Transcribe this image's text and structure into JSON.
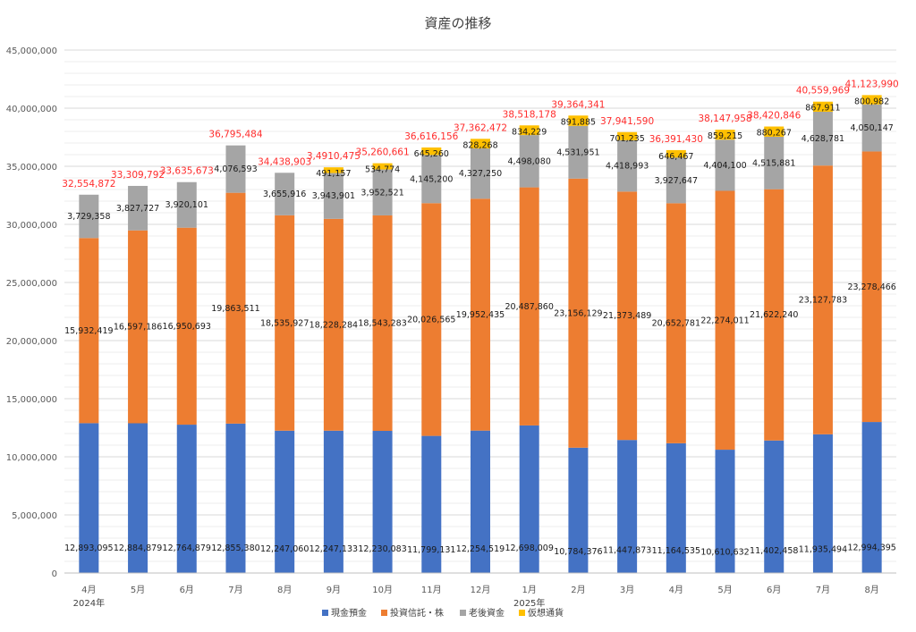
{
  "chart_data": {
    "type": "bar",
    "stacked": true,
    "title": "資産の推移",
    "categories": [
      "4月",
      "5月",
      "6月",
      "7月",
      "8月",
      "9月",
      "10月",
      "11月",
      "12月",
      "1月",
      "2月",
      "3月",
      "4月",
      "5月",
      "6月",
      "7月",
      "8月"
    ],
    "year_labels": [
      {
        "index": 0,
        "label": "2024年"
      },
      {
        "index": 9,
        "label": "2025年"
      }
    ],
    "ylim": [
      0,
      45000000
    ],
    "yticks": [
      "0",
      "5,000,000",
      "10,000,000",
      "15,000,000",
      "20,000,000",
      "25,000,000",
      "30,000,000",
      "35,000,000",
      "40,000,000",
      "45,000,000"
    ],
    "grid": true,
    "legend_position": "bottom",
    "series": [
      {
        "name": "現金預金",
        "color": "#4472c4",
        "values": [
          12893095,
          12884879,
          12764879,
          12855380,
          12247060,
          12247133,
          12230083,
          11799131,
          12254519,
          12698009,
          10784376,
          11447873,
          11164535,
          10610632,
          11402458,
          11935494,
          12994395
        ],
        "labels": [
          "12,893,095",
          "12,884,879",
          "12,764,879",
          "12,855,380",
          "12,247,060",
          "12,247,133",
          "12,230,083",
          "11,799,131",
          "12,254,519",
          "12,698,009",
          "10,784,376",
          "11,447,873",
          "11,164,535",
          "10,610,632",
          "11,402,458",
          "11,935,494",
          "12,994,395"
        ]
      },
      {
        "name": "投資信託・株",
        "color": "#ed7d31",
        "values": [
          15932419,
          16597186,
          16950693,
          19863511,
          18535927,
          18228284,
          18543283,
          20026565,
          19952435,
          20487860,
          23156129,
          21373489,
          20652781,
          22274011,
          21622240,
          23127783,
          23278466
        ],
        "labels": [
          "15,932,419",
          "16,597,186",
          "16,950,693",
          "19,863,511",
          "18,535,927",
          "18,228,284",
          "18,543,283",
          "20,026,565",
          "19,952,435",
          "20,487,860",
          "23,156,129",
          "21,373,489",
          "20,652,781",
          "22,274,011",
          "21,622,240",
          "23,127,783",
          "23,278,466"
        ]
      },
      {
        "name": "老後資金",
        "color": "#a5a5a5",
        "values": [
          3729358,
          3827727,
          3920101,
          4076593,
          3655916,
          3943901,
          3952521,
          4145200,
          4327250,
          4498080,
          4531951,
          4418993,
          3927647,
          4404100,
          4515881,
          4628781,
          4050147
        ],
        "labels": [
          "3,729,358",
          "3,827,727",
          "3,920,101",
          "4,076,593",
          "3,655,916",
          "3,943,901",
          "3,952,521",
          "4,145,200",
          "4,327,250",
          "4,498,080",
          "4,531,951",
          "4,418,993",
          "3,927,647",
          "4,404,100",
          "4,515,881",
          "4,628,781",
          "4,050,147"
        ]
      },
      {
        "name": "仮想通貨",
        "color": "#ffc000",
        "values": [
          0,
          0,
          0,
          0,
          0,
          491157,
          534774,
          645260,
          828268,
          834229,
          891885,
          701235,
          646467,
          859215,
          880267,
          867911,
          800982
        ],
        "labels": [
          "",
          "",
          "",
          "",
          "",
          "491,157",
          "534,774",
          "645,260",
          "828,268",
          "834,229",
          "891,885",
          "701,235",
          "646,467",
          "859,215",
          "880,267",
          "867,911",
          "800,982"
        ]
      }
    ],
    "totals": [
      "32,554,872",
      "33,309,792",
      "33,635,673",
      "36,795,484",
      "34,438,903",
      "3,4910,475",
      "35,260,661",
      "36,616,156",
      "37,362,472",
      "38,518,178",
      "39,364,341",
      "37,941,590",
      "36,391,430",
      "38,147,958",
      "38,420,846",
      "40,559,969",
      "41,123,990"
    ],
    "total_color": "#ff2b2b"
  }
}
